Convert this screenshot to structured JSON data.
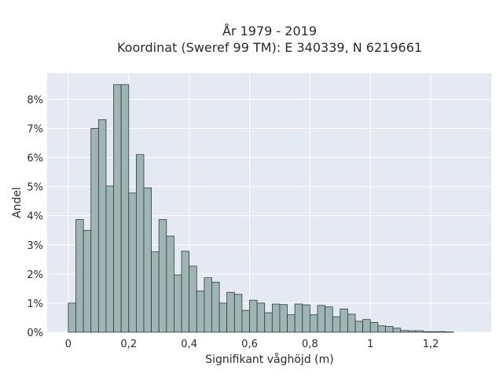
{
  "chart_data": {
    "type": "bar",
    "title": "År 1979 - 2019",
    "subtitle": "Koordinat (Sweref 99 TM): E 340339, N 6219661",
    "xlabel": "Signifikant våghöjd (m)",
    "ylabel": "Andel",
    "xlim": [
      -0.07,
      1.4
    ],
    "ylim": [
      0,
      8.9
    ],
    "x_ticks": [
      0,
      0.2,
      0.4,
      0.6,
      0.8,
      1.0,
      1.2
    ],
    "x_tick_labels": [
      "0",
      "0,2",
      "0,4",
      "0,6",
      "0,8",
      "1",
      "1,2"
    ],
    "y_ticks": [
      0,
      1,
      2,
      3,
      4,
      5,
      6,
      7,
      8
    ],
    "y_tick_labels": [
      "0%",
      "1%",
      "2%",
      "3%",
      "4%",
      "5%",
      "6%",
      "7%",
      "8%"
    ],
    "bin_start": 0,
    "bin_width": 0.025,
    "values": [
      1.0,
      3.87,
      3.5,
      7.0,
      7.3,
      5.02,
      8.5,
      8.5,
      4.78,
      6.1,
      4.96,
      2.76,
      3.87,
      3.3,
      1.97,
      2.78,
      2.27,
      1.42,
      1.87,
      1.72,
      1.0,
      1.37,
      1.3,
      0.75,
      1.1,
      1.0,
      0.67,
      0.97,
      0.95,
      0.6,
      0.97,
      0.94,
      0.6,
      0.92,
      0.87,
      0.53,
      0.8,
      0.62,
      0.38,
      0.44,
      0.34,
      0.22,
      0.2,
      0.14,
      0.06,
      0.05,
      0.05,
      0.02,
      0.02,
      0.02,
      0.01
    ],
    "grid": true,
    "legend": "none"
  },
  "colors": {
    "plot_background": "#e5e9f1",
    "bar_fill": "#9fb5b4",
    "bar_edge": "#2f3d3d",
    "grid": "#ffffff"
  }
}
